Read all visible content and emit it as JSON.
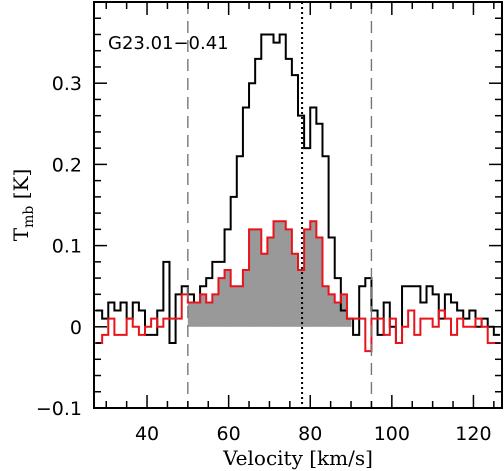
{
  "chart_data": {
    "type": "line",
    "title": "G23.01−0.41",
    "xlabel": "Velocity [km/s]",
    "ylabel_main": "T",
    "ylabel_sub": "mb",
    "ylabel_unit": " [K]",
    "xlim": [
      27,
      127
    ],
    "ylim": [
      -0.1,
      0.4
    ],
    "xticks": [
      40,
      60,
      80,
      100,
      120
    ],
    "xtick_labels": [
      "40",
      "60",
      "80",
      "100",
      "120"
    ],
    "yticks": [
      -0.1,
      0,
      0.1,
      0.2,
      0.3
    ],
    "ytick_labels": [
      "−0.1",
      "0",
      "0.1",
      "0.2",
      "0.3"
    ],
    "x_minor_step": 5,
    "y_minor_step": 0.02,
    "grid": false,
    "legend": "none",
    "vertical_lines": [
      {
        "x": 50,
        "style": "dashed",
        "color": "#777777"
      },
      {
        "x": 78,
        "style": "dotted",
        "color": "#000000"
      },
      {
        "x": 95,
        "style": "dashed",
        "color": "#777777"
      }
    ],
    "shaded_region": {
      "from": 50,
      "to": 90,
      "series_index": 1,
      "color": "#999999"
    },
    "series": [
      {
        "color": "#000000",
        "bin_width": 1.5,
        "x": [
          28.25,
          29.75,
          31.25,
          32.75,
          34.25,
          35.75,
          37.25,
          38.75,
          40.25,
          41.75,
          43.25,
          44.75,
          46.25,
          47.75,
          49.25,
          50.75,
          52.25,
          53.75,
          55.25,
          56.75,
          58.25,
          59.75,
          61.25,
          62.75,
          64.25,
          65.75,
          67.25,
          68.75,
          70.25,
          71.75,
          73.25,
          74.75,
          76.25,
          77.75,
          79.25,
          80.75,
          82.25,
          83.75,
          85.25,
          86.75,
          88.25,
          89.75,
          91.25,
          92.75,
          94.25,
          95.75,
          97.25,
          98.75,
          100.25,
          101.75,
          103.25,
          104.75,
          106.25,
          107.75,
          109.25,
          110.75,
          112.25,
          113.75,
          115.25,
          116.75,
          118.25,
          119.75,
          121.25,
          122.75,
          124.25,
          125.75
        ],
        "y": [
          0.02,
          0.01,
          0.03,
          0.02,
          0.03,
          0.01,
          0.03,
          0.02,
          -0.01,
          -0.01,
          0.02,
          0.08,
          -0.02,
          0.04,
          0.05,
          0.04,
          0.03,
          0.05,
          0.06,
          0.08,
          0.08,
          0.12,
          0.16,
          0.21,
          0.27,
          0.3,
          0.33,
          0.36,
          0.36,
          0.35,
          0.36,
          0.33,
          0.31,
          0.26,
          0.22,
          0.27,
          0.25,
          0.21,
          0.11,
          0.06,
          0.02,
          0.01,
          -0.01,
          0.05,
          0.06,
          0.02,
          -0.01,
          0.03,
          0.0,
          -0.02,
          0.05,
          0.05,
          0.05,
          0.03,
          0.05,
          0.04,
          0.01,
          0.04,
          0.03,
          0.02,
          0.01,
          0.02,
          0.0,
          0.01,
          0.0,
          -0.01
        ]
      },
      {
        "color": "#e8141c",
        "bin_width": 1.5,
        "x": [
          28.25,
          29.75,
          31.25,
          32.75,
          34.25,
          35.75,
          37.25,
          38.75,
          40.25,
          41.75,
          43.25,
          44.75,
          46.25,
          47.75,
          49.25,
          50.75,
          52.25,
          53.75,
          55.25,
          56.75,
          58.25,
          59.75,
          61.25,
          62.75,
          64.25,
          65.75,
          67.25,
          68.75,
          70.25,
          71.75,
          73.25,
          74.75,
          76.25,
          77.75,
          79.25,
          80.75,
          82.25,
          83.75,
          85.25,
          86.75,
          88.25,
          89.75,
          91.25,
          92.75,
          94.25,
          95.75,
          97.25,
          98.75,
          100.25,
          101.75,
          103.25,
          104.75,
          106.25,
          107.75,
          109.25,
          110.75,
          112.25,
          113.75,
          115.25,
          116.75,
          118.25,
          119.75,
          121.25,
          122.75,
          124.25,
          125.75
        ],
        "y": [
          -0.02,
          -0.01,
          0.01,
          -0.01,
          -0.01,
          0.01,
          0.0,
          -0.01,
          0.0,
          0.01,
          0.0,
          0.01,
          0.01,
          0.01,
          0.04,
          0.03,
          0.03,
          0.04,
          0.03,
          0.04,
          0.06,
          0.07,
          0.05,
          0.05,
          0.07,
          0.12,
          0.12,
          0.09,
          0.11,
          0.13,
          0.13,
          0.12,
          0.09,
          0.07,
          0.12,
          0.13,
          0.11,
          0.05,
          0.04,
          0.03,
          0.04,
          0.01,
          0.01,
          0.01,
          -0.03,
          0.01,
          0.01,
          -0.01,
          0.01,
          -0.02,
          0.0,
          0.02,
          -0.01,
          0.01,
          0.01,
          0.0,
          0.02,
          0.01,
          -0.01,
          0.01,
          0.0,
          0.0,
          0.01,
          0.0,
          -0.02,
          -0.02
        ]
      }
    ]
  }
}
